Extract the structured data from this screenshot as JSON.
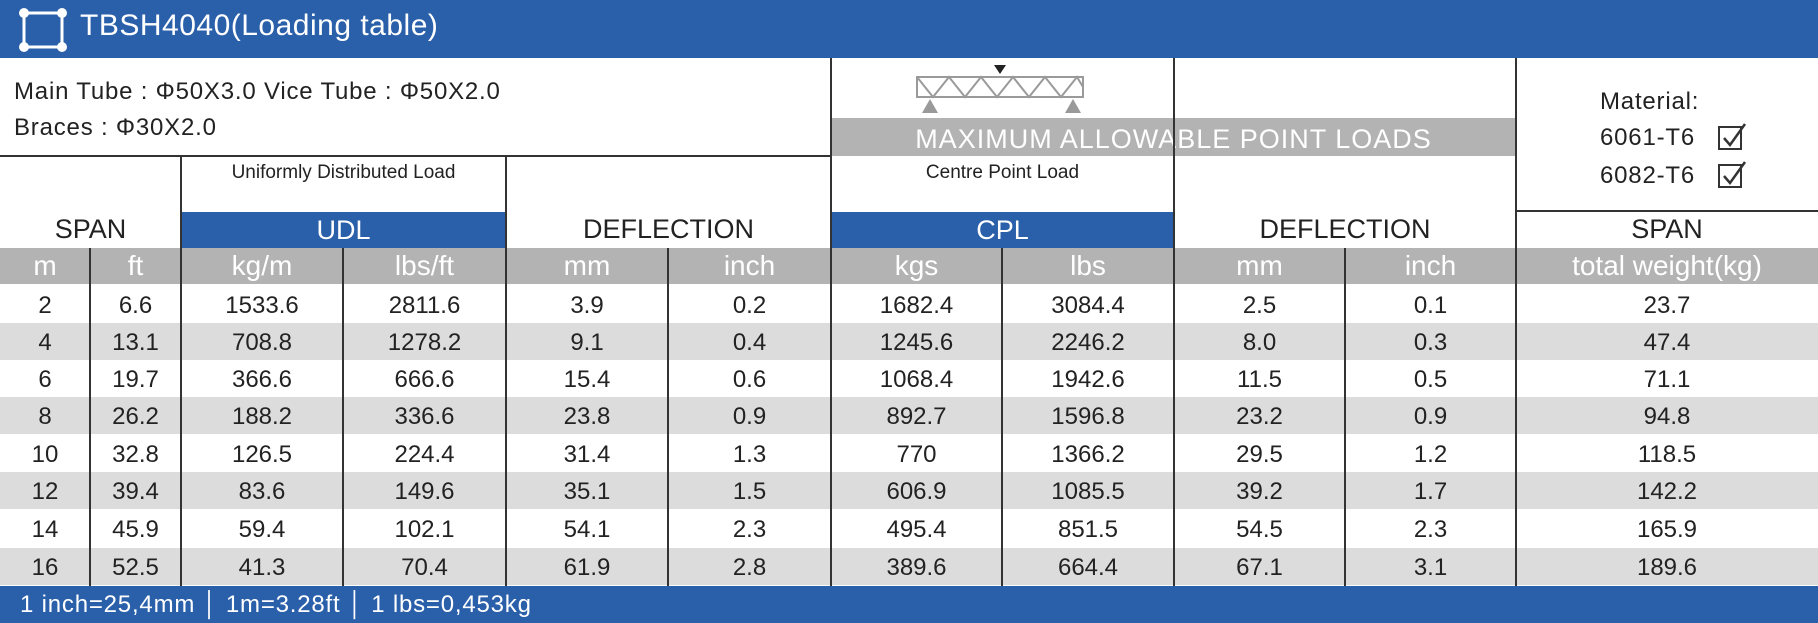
{
  "title": "TBSH4040(Loading table)",
  "specs": {
    "line1": "Main Tube : Φ50X3.0   Vice Tube : Φ50X2.0",
    "line2": "Braces : Φ30X2.0"
  },
  "banner": "MAXIMUM ALLOWABLE POINT LOADS",
  "material": {
    "label": "Material:",
    "options": [
      {
        "name": "6061-T6",
        "checked": true
      },
      {
        "name": "6082-T6",
        "checked": true
      }
    ]
  },
  "headers": {
    "span": "SPAN",
    "udl_desc": "Uniformly Distributed Load",
    "udl": "UDL",
    "deflection": "DEFLECTION",
    "cpl_desc": "Centre Point Load",
    "cpl": "CPL",
    "deflection2": "DEFLECTION",
    "span2": "SPAN"
  },
  "units": [
    "m",
    "ft",
    "kg/m",
    "lbs/ft",
    "mm",
    "inch",
    "kgs",
    "lbs",
    "mm",
    "inch",
    "total weight(kg)"
  ],
  "rows": [
    [
      "2",
      "6.6",
      "1533.6",
      "2811.6",
      "3.9",
      "0.2",
      "1682.4",
      "3084.4",
      "2.5",
      "0.1",
      "23.7"
    ],
    [
      "4",
      "13.1",
      "708.8",
      "1278.2",
      "9.1",
      "0.4",
      "1245.6",
      "2246.2",
      "8.0",
      "0.3",
      "47.4"
    ],
    [
      "6",
      "19.7",
      "366.6",
      "666.6",
      "15.4",
      "0.6",
      "1068.4",
      "1942.6",
      "11.5",
      "0.5",
      "71.1"
    ],
    [
      "8",
      "26.2",
      "188.2",
      "336.6",
      "23.8",
      "0.9",
      "892.7",
      "1596.8",
      "23.2",
      "0.9",
      "94.8"
    ],
    [
      "10",
      "32.8",
      "126.5",
      "224.4",
      "31.4",
      "1.3",
      "770",
      "1366.2",
      "29.5",
      "1.2",
      "118.5"
    ],
    [
      "12",
      "39.4",
      "83.6",
      "149.6",
      "35.1",
      "1.5",
      "606.9",
      "1085.5",
      "39.2",
      "1.7",
      "142.2"
    ],
    [
      "14",
      "45.9",
      "59.4",
      "102.1",
      "54.1",
      "2.3",
      "495.4",
      "851.5",
      "54.5",
      "2.3",
      "165.9"
    ],
    [
      "16",
      "52.5",
      "41.3",
      "70.4",
      "61.9",
      "2.8",
      "389.6",
      "664.4",
      "67.1",
      "3.1",
      "189.6"
    ]
  ],
  "footer": "1 inch=25,4mm │ 1m=3.28ft │ 1 lbs=0,453kg",
  "colors": {
    "brand_blue": "#2a5faa",
    "band_gray": "#b3b3b3",
    "row_alt": "#dcdcdc"
  }
}
